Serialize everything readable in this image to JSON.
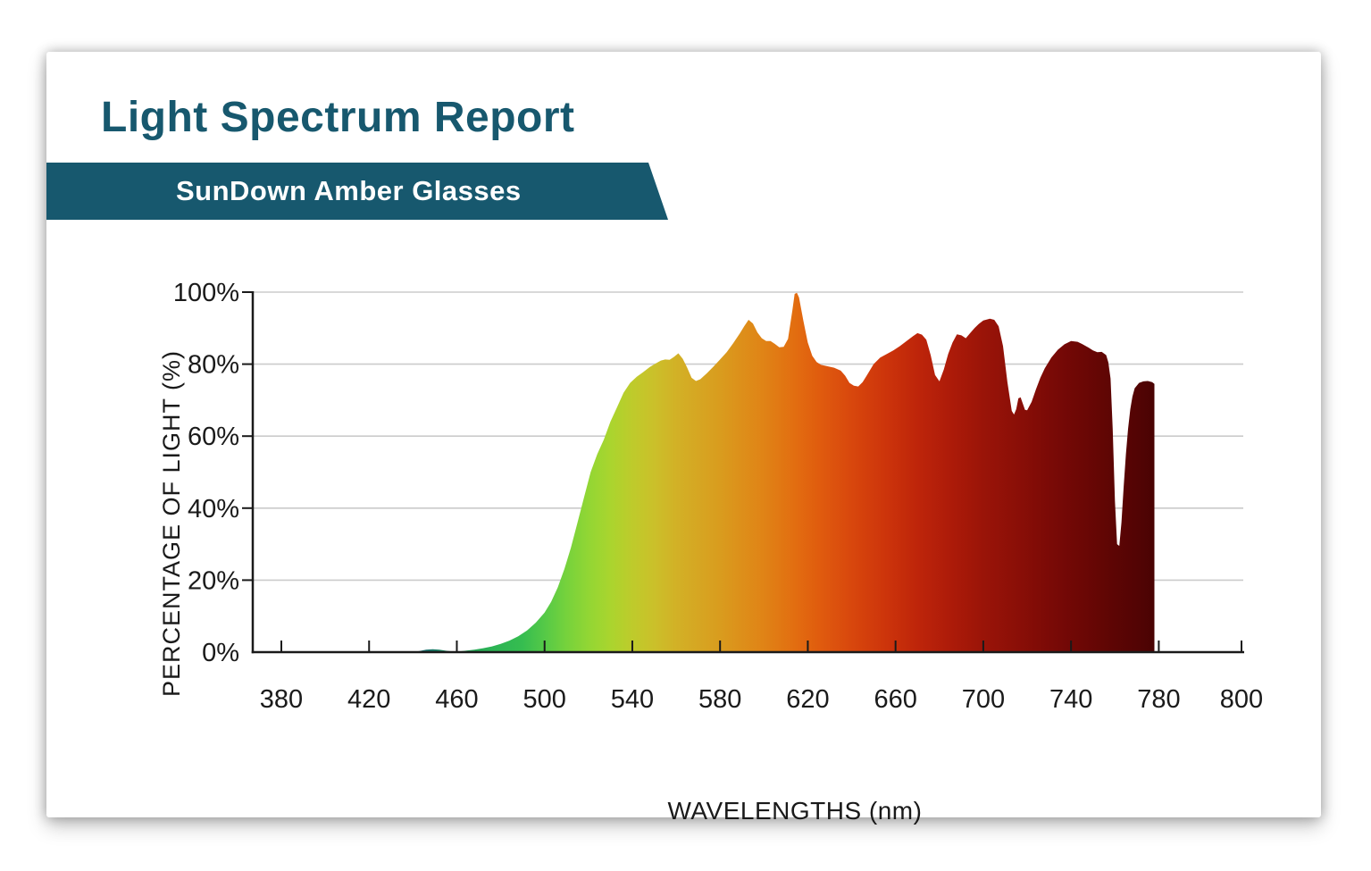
{
  "report": {
    "title": "Light Spectrum Report",
    "subtitle": "SunDown Amber Glasses"
  },
  "theme": {
    "accent_teal": "#17586E",
    "banner_text_color": "#FFFFFF",
    "axis_color": "#1A1A1A",
    "gridline_color": "#CBCBCB",
    "card_bg": "#FFFFFF"
  },
  "chart_data": {
    "type": "area",
    "title": "",
    "xlabel": "WAVELENGTHS (nm)",
    "ylabel": "PERCENTAGE OF LIGHT (%)",
    "xlim": [
      380,
      800
    ],
    "ylim": [
      0,
      100
    ],
    "grid": "horizontal",
    "legend": "none",
    "x_ticks": [
      380,
      420,
      460,
      500,
      540,
      580,
      620,
      660,
      700,
      740,
      780,
      800
    ],
    "y_ticks": [
      0,
      20,
      40,
      60,
      80,
      100
    ],
    "y_tick_suffix": "%",
    "series": [
      {
        "name": "SunDown Amber Glasses",
        "points": [
          [
            440,
            0
          ],
          [
            443,
            0.3
          ],
          [
            446,
            0.7
          ],
          [
            449,
            0.8
          ],
          [
            452,
            0.7
          ],
          [
            455,
            0.4
          ],
          [
            458,
            0.2
          ],
          [
            461,
            0.2
          ],
          [
            464,
            0.4
          ],
          [
            468,
            0.7
          ],
          [
            472,
            1.1
          ],
          [
            476,
            1.6
          ],
          [
            480,
            2.3
          ],
          [
            484,
            3.2
          ],
          [
            488,
            4.4
          ],
          [
            492,
            6
          ],
          [
            496,
            8.2
          ],
          [
            500,
            11
          ],
          [
            503,
            14
          ],
          [
            506,
            18
          ],
          [
            509,
            23
          ],
          [
            512,
            29
          ],
          [
            515,
            36
          ],
          [
            518,
            43
          ],
          [
            521,
            50
          ],
          [
            524,
            55
          ],
          [
            527,
            59
          ],
          [
            530,
            64
          ],
          [
            533,
            68
          ],
          [
            536,
            72
          ],
          [
            539,
            74.8
          ],
          [
            542,
            76.5
          ],
          [
            545,
            77.8
          ],
          [
            548,
            79.2
          ],
          [
            551,
            80.3
          ],
          [
            553,
            81
          ],
          [
            555,
            81.3
          ],
          [
            557,
            81.2
          ],
          [
            559,
            82
          ],
          [
            561,
            83
          ],
          [
            563,
            81.5
          ],
          [
            565,
            79
          ],
          [
            567,
            76.2
          ],
          [
            569,
            75.3
          ],
          [
            571,
            75.8
          ],
          [
            574,
            77.5
          ],
          [
            577,
            79.3
          ],
          [
            580,
            81.3
          ],
          [
            583,
            83.3
          ],
          [
            586,
            85.8
          ],
          [
            589,
            88.5
          ],
          [
            591,
            90.5
          ],
          [
            593,
            92.3
          ],
          [
            595,
            91.3
          ],
          [
            597,
            88.8
          ],
          [
            599,
            87.2
          ],
          [
            601,
            86.4
          ],
          [
            603,
            86.4
          ],
          [
            605,
            85.6
          ],
          [
            607,
            84.7
          ],
          [
            609,
            84.8
          ],
          [
            611,
            87
          ],
          [
            613,
            95
          ],
          [
            614,
            99.5
          ],
          [
            615,
            99.8
          ],
          [
            616,
            98.5
          ],
          [
            618,
            92
          ],
          [
            620,
            86
          ],
          [
            622,
            82.3
          ],
          [
            624,
            80.6
          ],
          [
            626,
            79.8
          ],
          [
            629,
            79.4
          ],
          [
            632,
            79
          ],
          [
            635,
            78.2
          ],
          [
            637,
            76.8
          ],
          [
            639,
            74.8
          ],
          [
            641,
            74
          ],
          [
            643,
            73.8
          ],
          [
            645,
            75
          ],
          [
            647,
            77
          ],
          [
            650,
            80
          ],
          [
            653,
            81.8
          ],
          [
            656,
            82.8
          ],
          [
            659,
            83.8
          ],
          [
            662,
            85
          ],
          [
            665,
            86.4
          ],
          [
            668,
            87.8
          ],
          [
            670,
            88.6
          ],
          [
            672,
            88.2
          ],
          [
            674,
            86.8
          ],
          [
            676,
            82.5
          ],
          [
            678,
            77
          ],
          [
            680,
            75.2
          ],
          [
            682,
            78.5
          ],
          [
            684,
            82.8
          ],
          [
            686,
            86
          ],
          [
            688,
            88.3
          ],
          [
            690,
            88
          ],
          [
            692,
            87.2
          ],
          [
            694,
            88.6
          ],
          [
            696,
            90
          ],
          [
            698,
            91.2
          ],
          [
            700,
            92.1
          ],
          [
            703,
            92.6
          ],
          [
            705,
            92.3
          ],
          [
            707,
            90.5
          ],
          [
            709,
            85
          ],
          [
            711,
            75
          ],
          [
            713,
            67
          ],
          [
            714,
            66
          ],
          [
            715,
            67.5
          ],
          [
            716,
            70.5
          ],
          [
            717,
            70.8
          ],
          [
            719,
            67.3
          ],
          [
            720,
            67.2
          ],
          [
            722,
            69.5
          ],
          [
            724,
            73
          ],
          [
            726,
            76.2
          ],
          [
            728,
            78.8
          ],
          [
            731,
            81.8
          ],
          [
            734,
            84
          ],
          [
            737,
            85.5
          ],
          [
            740,
            86.4
          ],
          [
            743,
            86.2
          ],
          [
            745,
            85.6
          ],
          [
            748,
            84.6
          ],
          [
            750,
            83.8
          ],
          [
            752,
            83.3
          ],
          [
            754,
            83.4
          ],
          [
            756,
            82.5
          ],
          [
            757,
            80.5
          ],
          [
            758,
            76
          ],
          [
            759,
            62
          ],
          [
            760,
            42
          ],
          [
            761,
            30
          ],
          [
            762,
            29.5
          ],
          [
            763,
            36
          ],
          [
            764,
            46
          ],
          [
            765,
            55
          ],
          [
            766,
            62
          ],
          [
            767,
            67.5
          ],
          [
            768,
            71
          ],
          [
            769,
            73.3
          ],
          [
            771,
            74.8
          ],
          [
            773,
            75.2
          ],
          [
            775,
            75.3
          ],
          [
            777,
            75
          ],
          [
            778,
            74.5
          ]
        ]
      }
    ],
    "gradient_stops": [
      {
        "nm": 444,
        "color": "#156A6F"
      },
      {
        "nm": 460,
        "color": "#1E9A55"
      },
      {
        "nm": 475,
        "color": "#2AB254"
      },
      {
        "nm": 490,
        "color": "#36BD50"
      },
      {
        "nm": 500,
        "color": "#55C947"
      },
      {
        "nm": 510,
        "color": "#76D23C"
      },
      {
        "nm": 520,
        "color": "#92D634"
      },
      {
        "nm": 530,
        "color": "#AAD52E"
      },
      {
        "nm": 540,
        "color": "#BECB2B"
      },
      {
        "nm": 550,
        "color": "#CBC02A"
      },
      {
        "nm": 560,
        "color": "#D2B126"
      },
      {
        "nm": 570,
        "color": "#D6A622"
      },
      {
        "nm": 580,
        "color": "#D99C1E"
      },
      {
        "nm": 590,
        "color": "#DD8F1A"
      },
      {
        "nm": 600,
        "color": "#E08316"
      },
      {
        "nm": 615,
        "color": "#E26C10"
      },
      {
        "nm": 625,
        "color": "#E05C0E"
      },
      {
        "nm": 640,
        "color": "#D8470D"
      },
      {
        "nm": 655,
        "color": "#CD350B"
      },
      {
        "nm": 670,
        "color": "#BE250A"
      },
      {
        "nm": 685,
        "color": "#AD1B09"
      },
      {
        "nm": 700,
        "color": "#9A1408"
      },
      {
        "nm": 715,
        "color": "#8B0F07"
      },
      {
        "nm": 730,
        "color": "#7B0A06"
      },
      {
        "nm": 745,
        "color": "#6C0705"
      },
      {
        "nm": 760,
        "color": "#5C0504"
      },
      {
        "nm": 770,
        "color": "#530404"
      },
      {
        "nm": 778,
        "color": "#4A0303"
      }
    ]
  }
}
